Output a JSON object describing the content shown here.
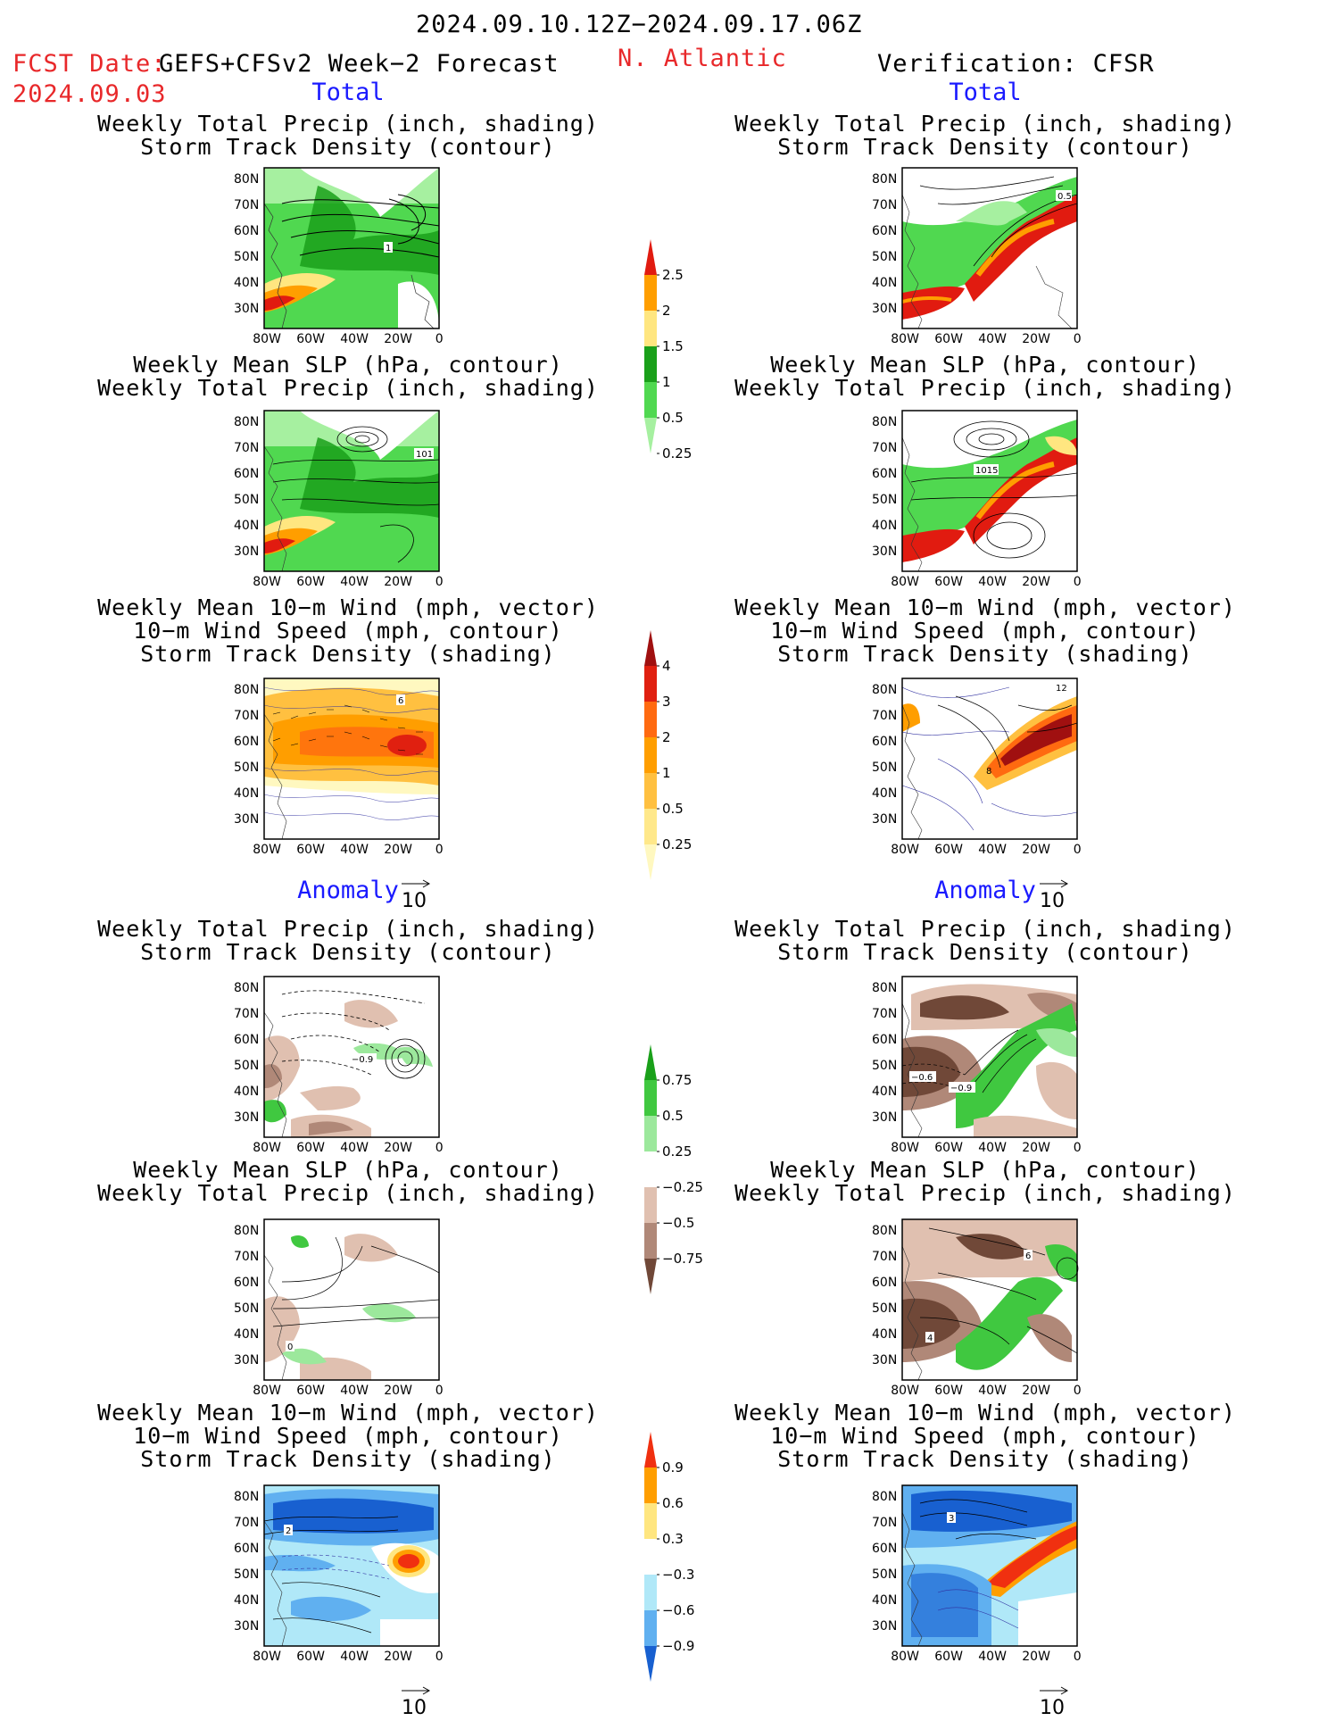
{
  "header": {
    "date_range": "2024.09.10.12Z−2024.09.17.06Z",
    "fcst_label": "FCST Date:",
    "fcst_model": "GEFS+CFSv2 Week−2 Forecast",
    "fcst_date": "2024.09.03",
    "region": "N. Atlantic",
    "verification": "Verification: CFSR"
  },
  "sections": {
    "total_left": "Total",
    "total_right": "Total",
    "anomaly_left": "Anomaly",
    "anomaly_right": "Anomaly"
  },
  "panel_titles": {
    "precip_track": [
      "Weekly Total Precip (inch, shading)",
      "Storm Track Density (contour)"
    ],
    "slp_precip": [
      "Weekly Mean SLP (hPa, contour)",
      "Weekly Total Precip (inch, shading)"
    ],
    "wind_track": [
      "Weekly Mean 10−m Wind (mph, vector)",
      "10−m Wind Speed (mph, contour)",
      "Storm Track Density (shading)"
    ]
  },
  "axes": {
    "lat_ticks": [
      "80N",
      "70N",
      "60N",
      "50N",
      "40N",
      "30N"
    ],
    "lon_ticks": [
      "80W",
      "60W",
      "40W",
      "20W",
      "0"
    ]
  },
  "vector_reference": "10",
  "contour_labels": {
    "p1": "1",
    "p2": "0.5",
    "p3": "101",
    "p4": "1015",
    "p5": "6",
    "p6": "12",
    "p6b": "8",
    "a1": "−0.9",
    "a2a": "−0.6",
    "a2b": "−0.9",
    "a3": "0",
    "a4a": "6",
    "a4b": "4",
    "a5": "2",
    "a6": "3"
  },
  "colorbars": {
    "precip_total": {
      "labels": [
        "2.5",
        "2",
        "1.5",
        "1",
        "0.5",
        "0.25"
      ],
      "colors": [
        "#e11b10",
        "#ff9e00",
        "#ffe680",
        "#1aa01a",
        "#50d850",
        "#a6f0a0"
      ]
    },
    "track_total": {
      "labels": [
        "4",
        "3",
        "2",
        "1",
        "0.5",
        "0.25"
      ],
      "colors": [
        "#a01010",
        "#e02010",
        "#ff6a10",
        "#ff9e00",
        "#ffc040",
        "#ffe88a",
        "#fff8c0"
      ]
    },
    "precip_anom": {
      "labels": [
        "0.75",
        "0.5",
        "0.25",
        "−0.25",
        "−0.5",
        "−0.75"
      ],
      "colors": [
        "#1aa01a",
        "#40c840",
        "#9ce89c",
        "#ffffff",
        "#e0c0b0",
        "#b08878",
        "#704838"
      ]
    },
    "track_anom": {
      "labels": [
        "0.9",
        "0.6",
        "0.3",
        "−0.3",
        "−0.6",
        "−0.9"
      ],
      "colors": [
        "#f03010",
        "#ff9e00",
        "#ffe680",
        "#ffffff",
        "#b0e8f8",
        "#60b0f0",
        "#1860d0"
      ]
    }
  }
}
